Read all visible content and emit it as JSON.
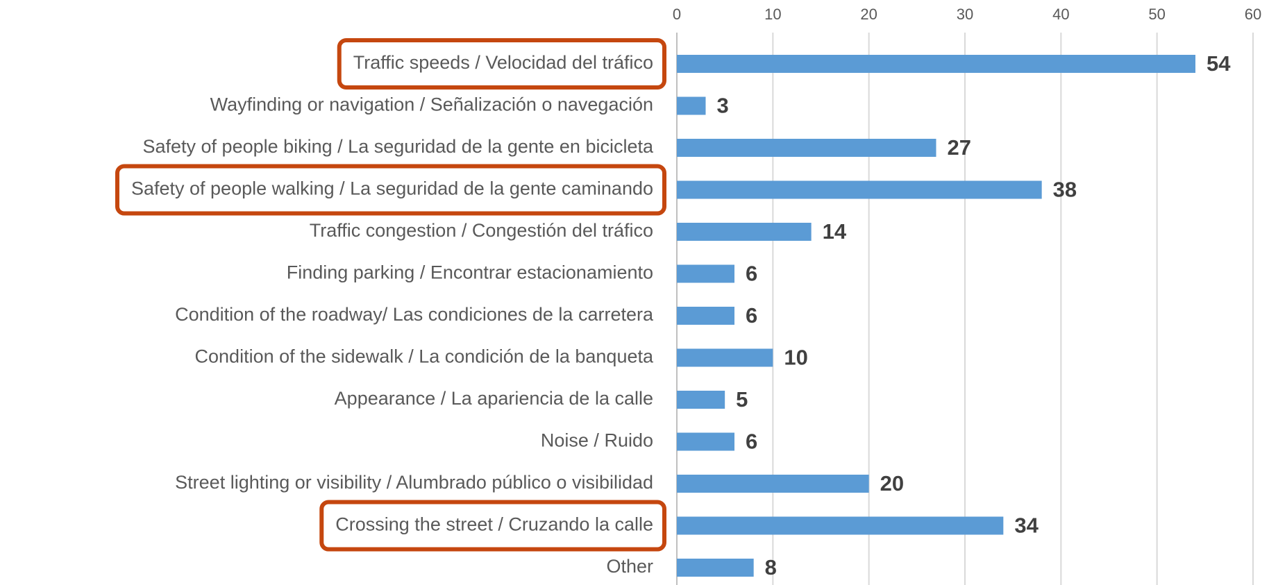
{
  "chart_data": {
    "type": "bar",
    "orientation": "horizontal",
    "categories": [
      "Traffic speeds / Velocidad del tráfico",
      "Wayfinding or navigation / Señalización o navegación",
      "Safety of people biking / La seguridad de la gente en bicicleta",
      "Safety of people walking / La seguridad de la gente caminando",
      "Traffic congestion / Congestión del tráfico",
      "Finding parking / Encontrar estacionamiento",
      "Condition of the roadway/ Las condiciones de la carretera",
      "Condition of the sidewalk / La condición de la banqueta",
      "Appearance / La apariencia de la calle",
      "Noise / Ruido",
      "Street lighting or visibility / Alumbrado público o visibilidad",
      "Crossing the street / Cruzando la calle",
      "Other"
    ],
    "values": [
      54,
      3,
      27,
      38,
      14,
      6,
      6,
      10,
      5,
      6,
      20,
      34,
      8
    ],
    "color": "#5b9bd5",
    "xlim": [
      0,
      60
    ],
    "xticks": [
      0,
      10,
      20,
      30,
      40,
      50,
      60
    ],
    "grid": true,
    "highlighted": [
      0,
      3,
      11
    ],
    "highlight_color": "#c5470f"
  }
}
